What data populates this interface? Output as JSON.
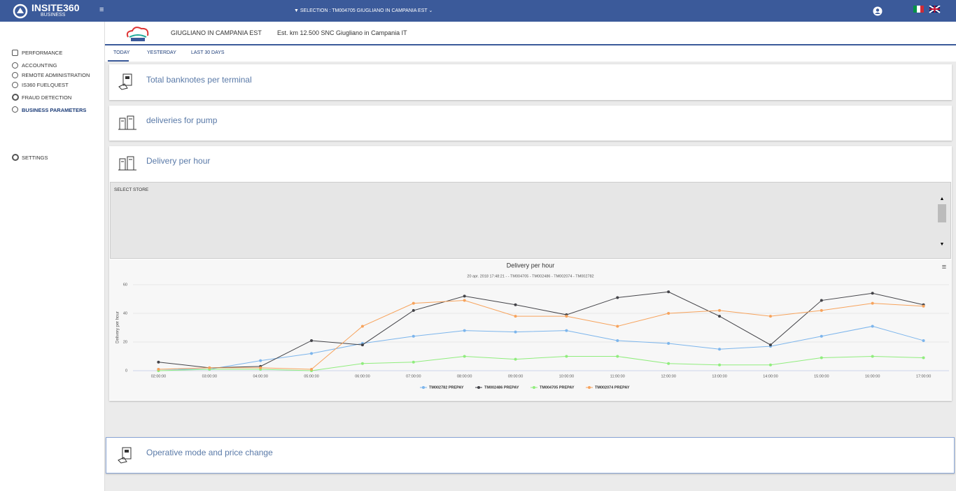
{
  "header": {
    "logo": "INSITE360",
    "logo_sub": "BUSINESS",
    "selection": "SELECTION : TM004705 GIUGLIANO IN CAMPANIA EST"
  },
  "sidebar": {
    "items": [
      "PERFORMANCE",
      "ACCOUNTING",
      "REMOTE ADMINISTRATION",
      "IS360 FUELQUEST",
      "FRAUD DETECTION",
      "BUSINESS PARAMETERS",
      "SETTINGS"
    ]
  },
  "store": {
    "name": "GIUGLIANO IN CAMPANIA EST",
    "address": "Est. km 12.500 SNC Giugliano in Campania IT"
  },
  "tabs": [
    "TODAY",
    "YESTERDAY",
    "LAST 30 DAYS"
  ],
  "panels": [
    "Total banknotes per terminal",
    "deliveries for pump",
    "Delivery per hour",
    "Operative mode and price change"
  ],
  "select_store": "SELECT STORE",
  "chart_data": {
    "type": "line",
    "title": "Delivery per hour",
    "subtitle": "20 apr. 2018 17:48:21 - - TM004705 - TM002486 - TM002074 - TM002782",
    "y_label": "Delivery per hour",
    "categories": [
      "02:00:00",
      "03:00:00",
      "04:00:00",
      "05:00:00",
      "06:00:00",
      "07:00:00",
      "08:00:00",
      "09:00:00",
      "10:00:00",
      "11:00:00",
      "12:00:00",
      "13:00:00",
      "14:00:00",
      "15:00:00",
      "16:00:00",
      "17:00:00"
    ],
    "series": [
      {
        "name": "TM002782 PREPAY",
        "color": "#7cb5ec",
        "values": [
          1,
          1,
          7,
          12,
          19,
          24,
          28,
          27,
          28,
          21,
          19,
          15,
          17,
          24,
          31,
          21
        ]
      },
      {
        "name": "TM002486 PREPAY",
        "color": "#434348",
        "values": [
          6,
          2,
          3,
          21,
          18,
          42,
          52,
          46,
          39,
          51,
          55,
          38,
          18,
          49,
          54,
          46
        ]
      },
      {
        "name": "TM004705 PREPAY",
        "color": "#90ed7d",
        "values": [
          0,
          1,
          1,
          0,
          5,
          6,
          10,
          8,
          10,
          10,
          5,
          4,
          4,
          9,
          10,
          9
        ]
      },
      {
        "name": "TM002074 PREPAY",
        "color": "#f7a35c",
        "values": [
          1,
          2,
          2,
          1,
          31,
          47,
          49,
          38,
          38,
          31,
          40,
          42,
          38,
          42,
          47,
          45
        ]
      }
    ],
    "ylim": [
      0,
      60
    ],
    "yticks": [
      0,
      20,
      40,
      60
    ],
    "grid": true
  }
}
